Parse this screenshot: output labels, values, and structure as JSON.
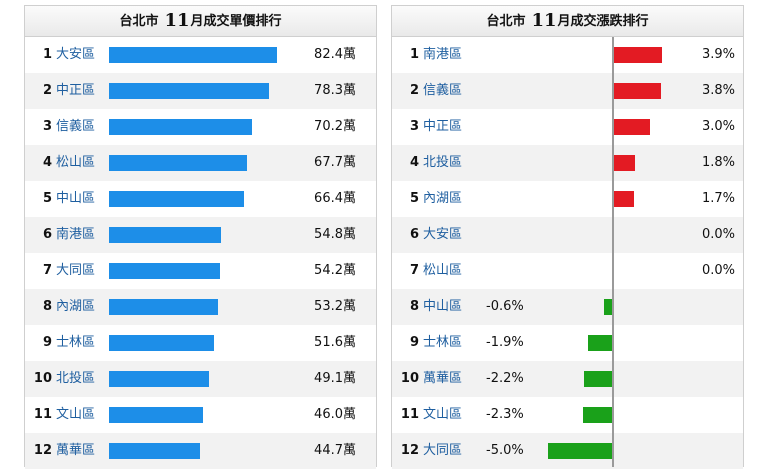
{
  "chart_data": [
    {
      "type": "bar",
      "orientation": "horizontal",
      "title": {
        "prefix": "台北市",
        "month": "11",
        "suffix": "月成交單價排行"
      },
      "unit": "萬",
      "xlim": [
        0,
        100
      ],
      "rows": [
        {
          "rank": "1",
          "district": "大安區",
          "value": 82.4,
          "label": "82.4萬"
        },
        {
          "rank": "2",
          "district": "中正區",
          "value": 78.3,
          "label": "78.3萬"
        },
        {
          "rank": "3",
          "district": "信義區",
          "value": 70.2,
          "label": "70.2萬"
        },
        {
          "rank": "4",
          "district": "松山區",
          "value": 67.7,
          "label": "67.7萬"
        },
        {
          "rank": "5",
          "district": "中山區",
          "value": 66.4,
          "label": "66.4萬"
        },
        {
          "rank": "6",
          "district": "南港區",
          "value": 54.8,
          "label": "54.8萬"
        },
        {
          "rank": "7",
          "district": "大同區",
          "value": 54.2,
          "label": "54.2萬"
        },
        {
          "rank": "8",
          "district": "內湖區",
          "value": 53.2,
          "label": "53.2萬"
        },
        {
          "rank": "9",
          "district": "士林區",
          "value": 51.6,
          "label": "51.6萬"
        },
        {
          "rank": "10",
          "district": "北投區",
          "value": 49.1,
          "label": "49.1萬"
        },
        {
          "rank": "11",
          "district": "文山區",
          "value": 46.0,
          "label": "46.0萬"
        },
        {
          "rank": "12",
          "district": "萬華區",
          "value": 44.7,
          "label": "44.7萬"
        }
      ]
    },
    {
      "type": "bar",
      "orientation": "horizontal-diverging",
      "title": {
        "prefix": "台北市",
        "month": "11",
        "suffix": "月成交漲跌排行"
      },
      "unit": "%",
      "xlim": [
        -6,
        6
      ],
      "colors": {
        "positive": "#e31b23",
        "negative": "#1aa11a"
      },
      "rows": [
        {
          "rank": "1",
          "district": "南港區",
          "value": 3.9,
          "label": "3.9%"
        },
        {
          "rank": "2",
          "district": "信義區",
          "value": 3.8,
          "label": "3.8%"
        },
        {
          "rank": "3",
          "district": "中正區",
          "value": 3.0,
          "label": "3.0%"
        },
        {
          "rank": "4",
          "district": "北投區",
          "value": 1.8,
          "label": "1.8%"
        },
        {
          "rank": "5",
          "district": "內湖區",
          "value": 1.7,
          "label": "1.7%"
        },
        {
          "rank": "6",
          "district": "大安區",
          "value": 0.0,
          "label": "0.0%"
        },
        {
          "rank": "7",
          "district": "松山區",
          "value": 0.0,
          "label": "0.0%"
        },
        {
          "rank": "8",
          "district": "中山區",
          "value": -0.6,
          "label": "-0.6%"
        },
        {
          "rank": "9",
          "district": "士林區",
          "value": -1.9,
          "label": "-1.9%"
        },
        {
          "rank": "10",
          "district": "萬華區",
          "value": -2.2,
          "label": "-2.2%"
        },
        {
          "rank": "11",
          "district": "文山區",
          "value": -2.3,
          "label": "-2.3%"
        },
        {
          "rank": "12",
          "district": "大同區",
          "value": -5.0,
          "label": "-5.0%"
        }
      ]
    }
  ]
}
